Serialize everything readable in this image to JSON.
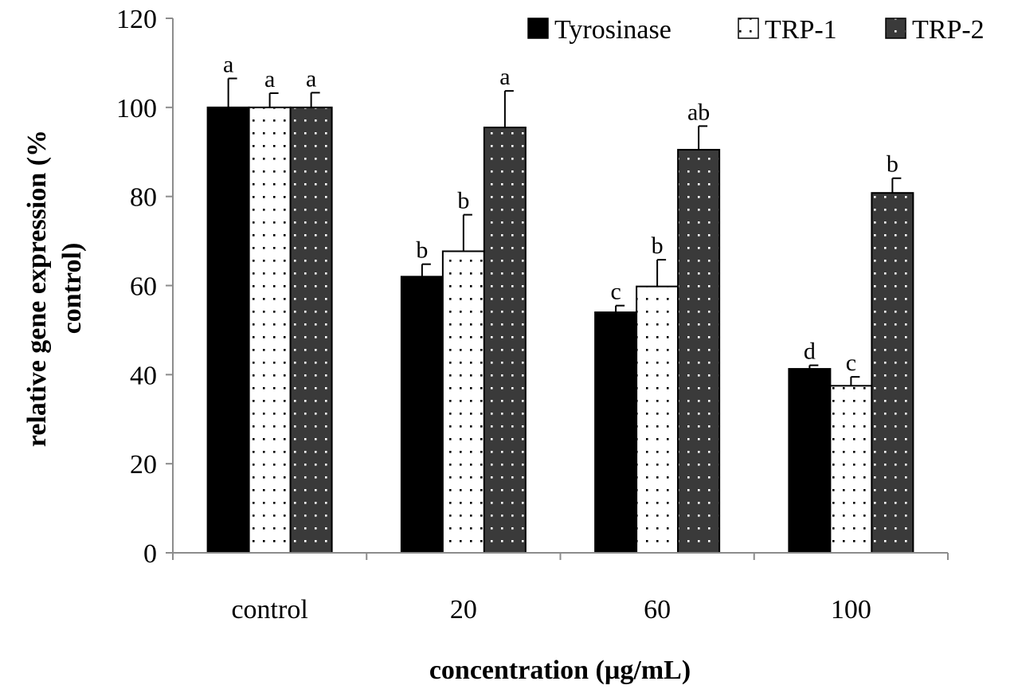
{
  "chart_data": {
    "type": "bar",
    "title": "",
    "xlabel": "concentration (µg/mL)",
    "ylabel_line1": "relative gene expression (%",
    "ylabel_line2": "control)",
    "ylim": [
      0,
      120
    ],
    "yticks": [
      0,
      20,
      40,
      60,
      80,
      100,
      120
    ],
    "categories": [
      "control",
      "20",
      "60",
      "100"
    ],
    "legend_position": "top-right",
    "series": [
      {
        "name": "Tyrosinase",
        "fill": "#000000",
        "pattern": "solid",
        "values": [
          100,
          62,
          54,
          41.3
        ],
        "errors": [
          6.5,
          2.8,
          1.5,
          0.8
        ],
        "labels": [
          "a",
          "b",
          "c",
          "d"
        ]
      },
      {
        "name": "TRP-1",
        "fill": "#ffffff",
        "pattern": "dots-dark",
        "values": [
          100,
          67.7,
          59.8,
          37.5
        ],
        "errors": [
          3.2,
          8.2,
          6,
          2
        ],
        "labels": [
          "a",
          "b",
          "b",
          "c"
        ]
      },
      {
        "name": "TRP-2",
        "fill": "#3a3a3a",
        "pattern": "dots-light",
        "values": [
          100,
          95.5,
          90.5,
          80.8
        ],
        "errors": [
          3.3,
          8.2,
          5.3,
          3.3
        ],
        "labels": [
          "a",
          "a",
          "ab",
          "b"
        ]
      }
    ]
  }
}
